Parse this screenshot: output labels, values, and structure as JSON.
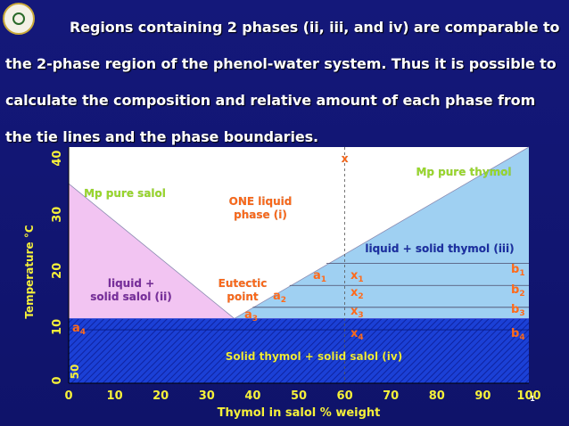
{
  "slide": {
    "paragraph": "Regions containing 2 phases (ii, iii, and iv) are comparable to the 2-phase region of the phenol-water system. Thus it is possible to calculate the composition and relative amount of each phase from the tie lines and the phase boundaries.",
    "page_number": "1"
  },
  "colors": {
    "background": "#14187a",
    "salol_region": "#f2c4f2",
    "thymol_region": "#9fd0f2",
    "solid_region": "#1536c8",
    "label_green": "#9bdc2a",
    "label_orange": "#ff6a1a",
    "label_purple": "#7a2ea0",
    "label_blue": "#1b2fa6",
    "label_yellow": "#f5f03a"
  },
  "chart_data": {
    "type": "area",
    "title": "",
    "xlabel": "Thymol in salol % weight",
    "ylabel": "Temperature °C",
    "xlim": [
      0,
      100
    ],
    "ylim": [
      0,
      40
    ],
    "x_ticks": [
      "0",
      "10",
      "20",
      "30",
      "40",
      "50",
      "60",
      "70",
      "80",
      "90",
      "100"
    ],
    "y_ticks": [
      "0",
      "10",
      "20",
      "30",
      "40"
    ],
    "y_extra_tick": "50",
    "melting_point_salol": 35.5,
    "melting_point_thymol": 42,
    "eutectic": {
      "x": 36,
      "y": 11.5
    },
    "solid_level": 11.5,
    "boundaries": [
      {
        "name": "salol liquidus",
        "points": [
          [
            0,
            35.5
          ],
          [
            36,
            11.5
          ]
        ]
      },
      {
        "name": "thymol liquidus",
        "points": [
          [
            36,
            11.5
          ],
          [
            100,
            42
          ]
        ]
      }
    ],
    "isopleth": {
      "x": 60,
      "label": "x"
    },
    "tie_lines": [
      {
        "y": 21.3,
        "left_x": 56,
        "left_label": "a1",
        "point_label": "x1",
        "right_label": "b1"
      },
      {
        "y": 17.4,
        "left_x": 48,
        "left_label": "a2",
        "point_label": "x2",
        "right_label": "b2"
      },
      {
        "y": 13.5,
        "left_x": 40,
        "left_label": "a3",
        "point_label": "x3",
        "right_label": "b3"
      },
      {
        "y": 9.5,
        "left_x": 0,
        "left_label": "a4",
        "point_label": "x4",
        "right_label": "b4"
      }
    ],
    "regions": [
      {
        "label": "Mp pure salol"
      },
      {
        "label": "Mp pure thymol"
      },
      {
        "label": "ONE  liquid\nphase (i)"
      },
      {
        "label": "liquid + solid thymol (iii)"
      },
      {
        "label": "liquid +\nsolid salol (ii)"
      },
      {
        "label": "Eutectic\npoint"
      },
      {
        "label": "Solid thymol + solid salol (iv)"
      }
    ]
  }
}
